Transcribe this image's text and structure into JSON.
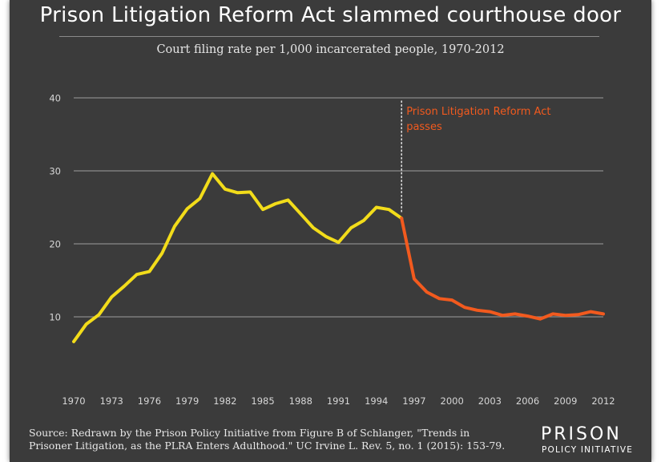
{
  "chart_data": {
    "type": "line",
    "title": "Prison Litigation Reform Act slammed courthouse door",
    "subtitle": "Court filing rate per 1,000 incarcerated people, 1970-2012",
    "xlabel": "",
    "ylabel": "",
    "xlim": [
      1970,
      2012
    ],
    "ylim": [
      0,
      40
    ],
    "yticks": [
      10,
      20,
      30,
      40
    ],
    "xticks": [
      1970,
      1973,
      1976,
      1979,
      1982,
      1985,
      1988,
      1991,
      1994,
      1997,
      2000,
      2003,
      2006,
      2009,
      2012
    ],
    "grid": true,
    "series": [
      {
        "color": "#f2dc1a",
        "x": [
          1970,
          1971,
          1972,
          1973,
          1974,
          1975,
          1976,
          1977,
          1978,
          1979,
          1980,
          1981,
          1982,
          1983,
          1984,
          1985,
          1986,
          1987,
          1988,
          1989,
          1990,
          1991,
          1992,
          1993,
          1994,
          1995,
          1996
        ],
        "y": [
          6.6,
          9.0,
          10.3,
          12.7,
          14.2,
          15.8,
          16.2,
          18.7,
          22.4,
          24.8,
          26.2,
          29.6,
          27.5,
          27.0,
          27.1,
          24.7,
          25.5,
          26.0,
          24.1,
          22.2,
          21.0,
          20.2,
          22.2,
          23.2,
          25.0,
          24.7,
          23.5
        ]
      },
      {
        "color": "#f25a1e",
        "x": [
          1996,
          1997,
          1998,
          1999,
          2000,
          2001,
          2002,
          2003,
          2004,
          2005,
          2006,
          2007,
          2008,
          2009,
          2010,
          2011,
          2012
        ],
        "y": [
          23.5,
          15.2,
          13.4,
          12.5,
          12.3,
          11.3,
          10.9,
          10.7,
          10.2,
          10.4,
          10.1,
          9.7,
          10.4,
          10.2,
          10.3,
          10.7,
          10.4
        ]
      }
    ],
    "annotations": [
      {
        "x": 1996,
        "text_lines": [
          "Prison Litigation Reform Act",
          "passes"
        ],
        "color": "#f25a1e"
      }
    ]
  },
  "source": {
    "line1": "Source: Redrawn by the Prison Policy Initiative from Figure B of Schlanger, \"Trends in",
    "line2": "Prisoner Litigation, as the PLRA Enters Adulthood.\" UC Irvine L. Rev. 5, no. 1 (2015): 153-79."
  },
  "logo": {
    "line1": "PRISON",
    "line2": "POLICY INITIATIVE"
  },
  "colors": {
    "background": "#3b3b3b",
    "gridline": "#8a8a8a",
    "tick_text": "#d6d6d6"
  }
}
